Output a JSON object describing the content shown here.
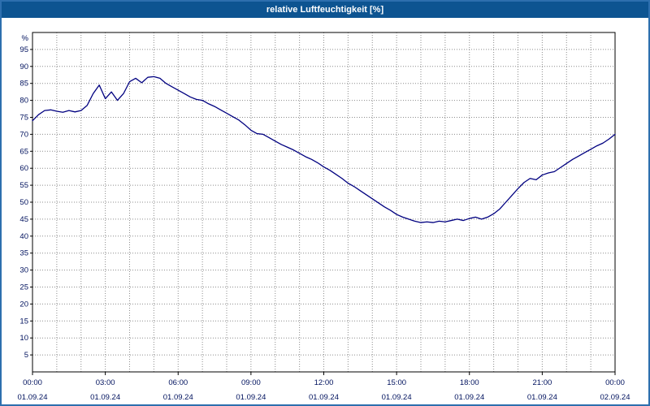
{
  "window": {
    "title": "relative Luftfeuchtigkeit [%]"
  },
  "colors": {
    "titlebar_bg": "#0d5491",
    "page_border": "#2d6fae",
    "line": "#000080",
    "grid": "#8c8c8c",
    "frame": "#000000",
    "axis_text": "#00125e"
  },
  "chart_data": {
    "type": "line",
    "title": "relative Luftfeuchtigkeit [%]",
    "xlabel": "",
    "ylabel": "%",
    "ylim": [
      0,
      100
    ],
    "ytick_step": 5,
    "yticks": [
      5,
      10,
      15,
      20,
      25,
      30,
      35,
      40,
      45,
      50,
      55,
      60,
      65,
      70,
      75,
      80,
      85,
      90,
      95
    ],
    "grid": "dotted, vertical every 1 hour, horizontal every 5 %",
    "legend_position": "none",
    "x_range_hours": [
      0,
      24
    ],
    "x_step_hours": 0.25,
    "x_hours": [
      0,
      0.25,
      0.5,
      0.75,
      1,
      1.25,
      1.5,
      1.75,
      2,
      2.25,
      2.5,
      2.75,
      3,
      3.25,
      3.5,
      3.75,
      4,
      4.25,
      4.5,
      4.75,
      5,
      5.25,
      5.5,
      5.75,
      6,
      6.25,
      6.5,
      6.75,
      7,
      7.25,
      7.5,
      7.75,
      8,
      8.25,
      8.5,
      8.75,
      9,
      9.25,
      9.5,
      9.75,
      10,
      10.25,
      10.5,
      10.75,
      11,
      11.25,
      11.5,
      11.75,
      12,
      12.25,
      12.5,
      12.75,
      13,
      13.25,
      13.5,
      13.75,
      14,
      14.25,
      14.5,
      14.75,
      15,
      15.25,
      15.5,
      15.75,
      16,
      16.25,
      16.5,
      16.75,
      17,
      17.25,
      17.5,
      17.75,
      18,
      18.25,
      18.5,
      18.75,
      19,
      19.25,
      19.5,
      19.75,
      20,
      20.25,
      20.5,
      20.75,
      21,
      21.25,
      21.5,
      21.75,
      22,
      22.25,
      22.5,
      22.75,
      23,
      23.25,
      23.5,
      23.75,
      24
    ],
    "values": [
      74.0,
      75.8,
      77.0,
      77.2,
      76.8,
      76.5,
      77.0,
      76.6,
      77.0,
      78.5,
      82.0,
      84.5,
      80.5,
      82.5,
      80.0,
      82.0,
      85.5,
      86.5,
      85.2,
      86.8,
      87.0,
      86.5,
      85.0,
      84.0,
      83.0,
      82.0,
      81.0,
      80.3,
      80.0,
      79.0,
      78.2,
      77.2,
      76.2,
      75.2,
      74.2,
      72.8,
      71.2,
      70.2,
      70.0,
      69.0,
      68.0,
      67.0,
      66.2,
      65.4,
      64.4,
      63.4,
      62.6,
      61.6,
      60.4,
      59.4,
      58.2,
      57.0,
      55.6,
      54.6,
      53.4,
      52.2,
      51.0,
      49.8,
      48.6,
      47.6,
      46.4,
      45.6,
      45.0,
      44.4,
      44.0,
      44.2,
      44.0,
      44.4,
      44.2,
      44.6,
      45.0,
      44.6,
      45.2,
      45.6,
      45.0,
      45.6,
      46.6,
      48.0,
      50.0,
      52.0,
      54.0,
      55.8,
      57.0,
      56.6,
      58.0,
      58.6,
      59.0,
      60.2,
      61.4,
      62.6,
      63.6,
      64.6,
      65.6,
      66.6,
      67.4,
      68.6,
      70.0
    ],
    "xticks": [
      {
        "time": "00:00",
        "date": "01.09.24",
        "hour": 0
      },
      {
        "time": "03:00",
        "date": "01.09.24",
        "hour": 3
      },
      {
        "time": "06:00",
        "date": "01.09.24",
        "hour": 6
      },
      {
        "time": "09:00",
        "date": "01.09.24",
        "hour": 9
      },
      {
        "time": "12:00",
        "date": "01.09.24",
        "hour": 12
      },
      {
        "time": "15:00",
        "date": "01.09.24",
        "hour": 15
      },
      {
        "time": "18:00",
        "date": "01.09.24",
        "hour": 18
      },
      {
        "time": "21:00",
        "date": "01.09.24",
        "hour": 21
      },
      {
        "time": "00:00",
        "date": "02.09.24",
        "hour": 24
      }
    ]
  }
}
